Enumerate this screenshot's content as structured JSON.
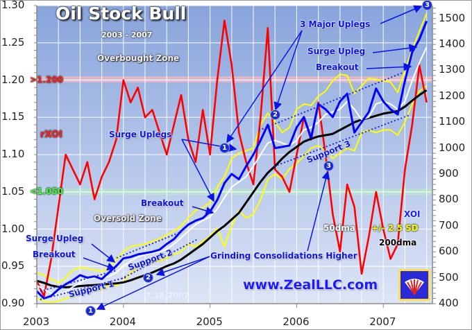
{
  "chart_data": {
    "type": "line",
    "title": "Oil Stock Bull",
    "subtitle": "2003 - 2007",
    "date_stamp": "7.18.2007",
    "x_tick_labels": [
      "2003",
      "2004",
      "2005",
      "2006",
      "2007"
    ],
    "left_axis": {
      "range": [
        0.9,
        1.3
      ],
      "tick_labels": [
        "0.90",
        "0.95",
        "1.00",
        "1.05",
        "1.10",
        "1.15",
        "1.20",
        "1.25",
        "1.30"
      ]
    },
    "right_axis": {
      "range": [
        400,
        1550
      ],
      "tick_labels": [
        "400",
        "500",
        "600",
        "700",
        "800",
        "900",
        "1000",
        "1100",
        "1200",
        "1300",
        "1400",
        "1500"
      ]
    },
    "grid": true,
    "x": [
      "2003-01",
      "2003-02",
      "2003-03",
      "2003-04",
      "2003-05",
      "2003-06",
      "2003-07",
      "2003-08",
      "2003-09",
      "2003-10",
      "2003-11",
      "2003-12",
      "2004-01",
      "2004-02",
      "2004-03",
      "2004-04",
      "2004-05",
      "2004-06",
      "2004-07",
      "2004-08",
      "2004-09",
      "2004-10",
      "2004-11",
      "2004-12",
      "2005-01",
      "2005-02",
      "2005-03",
      "2005-04",
      "2005-05",
      "2005-06",
      "2005-07",
      "2005-08",
      "2005-09",
      "2005-10",
      "2005-11",
      "2005-12",
      "2006-01",
      "2006-02",
      "2006-03",
      "2006-04",
      "2006-05",
      "2006-06",
      "2006-07",
      "2006-08",
      "2006-09",
      "2006-10",
      "2006-11",
      "2006-12",
      "2007-01",
      "2007-02",
      "2007-03",
      "2007-04",
      "2007-05",
      "2007-06",
      "2007-07"
    ],
    "series": [
      {
        "name": "rXOI",
        "axis": "left",
        "color": "#ff0000",
        "values": [
          0.93,
          0.91,
          0.96,
          1.03,
          1.1,
          1.08,
          1.06,
          1.09,
          1.04,
          1.07,
          1.09,
          1.12,
          1.2,
          1.17,
          1.19,
          1.15,
          1.16,
          1.13,
          1.1,
          1.14,
          1.18,
          1.12,
          1.09,
          1.16,
          1.1,
          1.2,
          1.28,
          1.22,
          1.13,
          1.09,
          1.06,
          1.15,
          1.27,
          1.08,
          1.07,
          1.05,
          1.1,
          1.15,
          1.12,
          1.17,
          1.1,
          1.02,
          0.97,
          1.06,
          1.03,
          0.94,
          0.99,
          1.05,
          1.0,
          0.96,
          0.98,
          1.08,
          1.14,
          1.22,
          1.17
        ]
      },
      {
        "name": "+/- 2.5 SD",
        "axis": "right",
        "color": "#ffff00",
        "values": [
          520,
          510,
          495,
          480,
          500,
          530,
          540,
          535,
          530,
          525,
          540,
          570,
          600,
          620,
          625,
          630,
          640,
          650,
          665,
          680,
          700,
          730,
          760,
          770,
          790,
          850,
          890,
          960,
          980,
          990,
          1000,
          1090,
          1135,
          1100,
          1060,
          1080,
          1150,
          1170,
          1165,
          1200,
          1220,
          1260,
          1285,
          1280,
          1210,
          1240,
          1270,
          1265,
          1260,
          1255,
          1215,
          1300,
          1380,
          1450,
          1520
        ]
      },
      {
        "name": "+/- 2.5 SD",
        "axis": "right",
        "color": "#ffff00",
        "values": [
          420,
          410,
          405,
          410,
          420,
          430,
          440,
          445,
          450,
          455,
          470,
          470,
          485,
          520,
          540,
          555,
          560,
          565,
          575,
          590,
          600,
          630,
          620,
          640,
          660,
          690,
          620,
          700,
          760,
          730,
          745,
          800,
          880,
          900,
          880,
          920,
          940,
          970,
          1000,
          1010,
          990,
          960,
          980,
          1000,
          990,
          1060,
          1070,
          1060,
          1070,
          1070,
          1050,
          1100,
          1170,
          1220,
          1240
        ]
      },
      {
        "name": "200dma",
        "axis": "right",
        "color": "#000000",
        "values": [
          488,
          480,
          470,
          465,
          463,
          465,
          468,
          470,
          472,
          474,
          476,
          478,
          482,
          490,
          500,
          510,
          520,
          532,
          545,
          555,
          570,
          590,
          610,
          630,
          655,
          680,
          700,
          725,
          750,
          790,
          830,
          870,
          905,
          930,
          960,
          985,
          1005,
          1025,
          1036,
          1045,
          1050,
          1055,
          1070,
          1085,
          1100,
          1110,
          1117,
          1125,
          1133,
          1138,
          1143,
          1160,
          1183,
          1205,
          1223
        ]
      },
      {
        "name": "50dma",
        "axis": "right",
        "color": "#ffffff",
        "values": [
          470,
          455,
          440,
          435,
          445,
          465,
          480,
          495,
          500,
          500,
          505,
          520,
          545,
          565,
          580,
          590,
          595,
          600,
          610,
          630,
          655,
          680,
          705,
          720,
          735,
          765,
          810,
          850,
          870,
          890,
          930,
          975,
          1020,
          1030,
          1020,
          1010,
          1030,
          1070,
          1080,
          1100,
          1130,
          1140,
          1150,
          1180,
          1150,
          1110,
          1120,
          1170,
          1180,
          1170,
          1150,
          1180,
          1260,
          1330,
          1390
        ]
      },
      {
        "name": "XOI",
        "axis": "right",
        "color": "#0000ff",
        "values": [
          448,
          420,
          430,
          455,
          475,
          490,
          510,
          500,
          505,
          495,
          520,
          545,
          575,
          580,
          590,
          595,
          600,
          608,
          630,
          649,
          680,
          705,
          720,
          730,
          755,
          800,
          865,
          900,
          880,
          930,
          975,
          1030,
          1090,
          1000,
          1005,
          1010,
          1080,
          1120,
          1040,
          1170,
          1150,
          1120,
          1180,
          1210,
          1060,
          1100,
          1140,
          1230,
          1180,
          1150,
          1130,
          1260,
          1370,
          1420,
          1490
        ]
      }
    ],
    "bands": {
      "overbought_level": ">1.200",
      "oversold_level": "<1.050",
      "overbought_color": "#f3b8c0",
      "oversold_color": "#b8e8c8"
    }
  },
  "labels": {
    "overbought_zone": "Overbought Zone",
    "oversold_zone": "Oversold Zone",
    "rxoi": "rXOI",
    "surge_uplegs": "Surge Uplegs",
    "major_uplegs": "3 Major Uplegs",
    "surge_upleg_right": "Surge Upleg",
    "breakout_right": "Breakout",
    "breakout_mid": "Breakout",
    "surge_upleg_left": "Surge Upleg",
    "breakout_left": "Breakout",
    "support1": "Support 1",
    "support2": "Support 2",
    "support3": "Support 3",
    "grinding": "Grinding Consolidations Higher",
    "xoi": "XOI",
    "dma50": "50dma",
    "sd": "+/- 2.5 SD",
    "dma200": "200dma",
    "website": "www.ZealLLC.com",
    "circles": [
      "1",
      "2",
      "1",
      "2",
      "3",
      "3"
    ]
  },
  "logo": {
    "text": "ZEAL"
  }
}
